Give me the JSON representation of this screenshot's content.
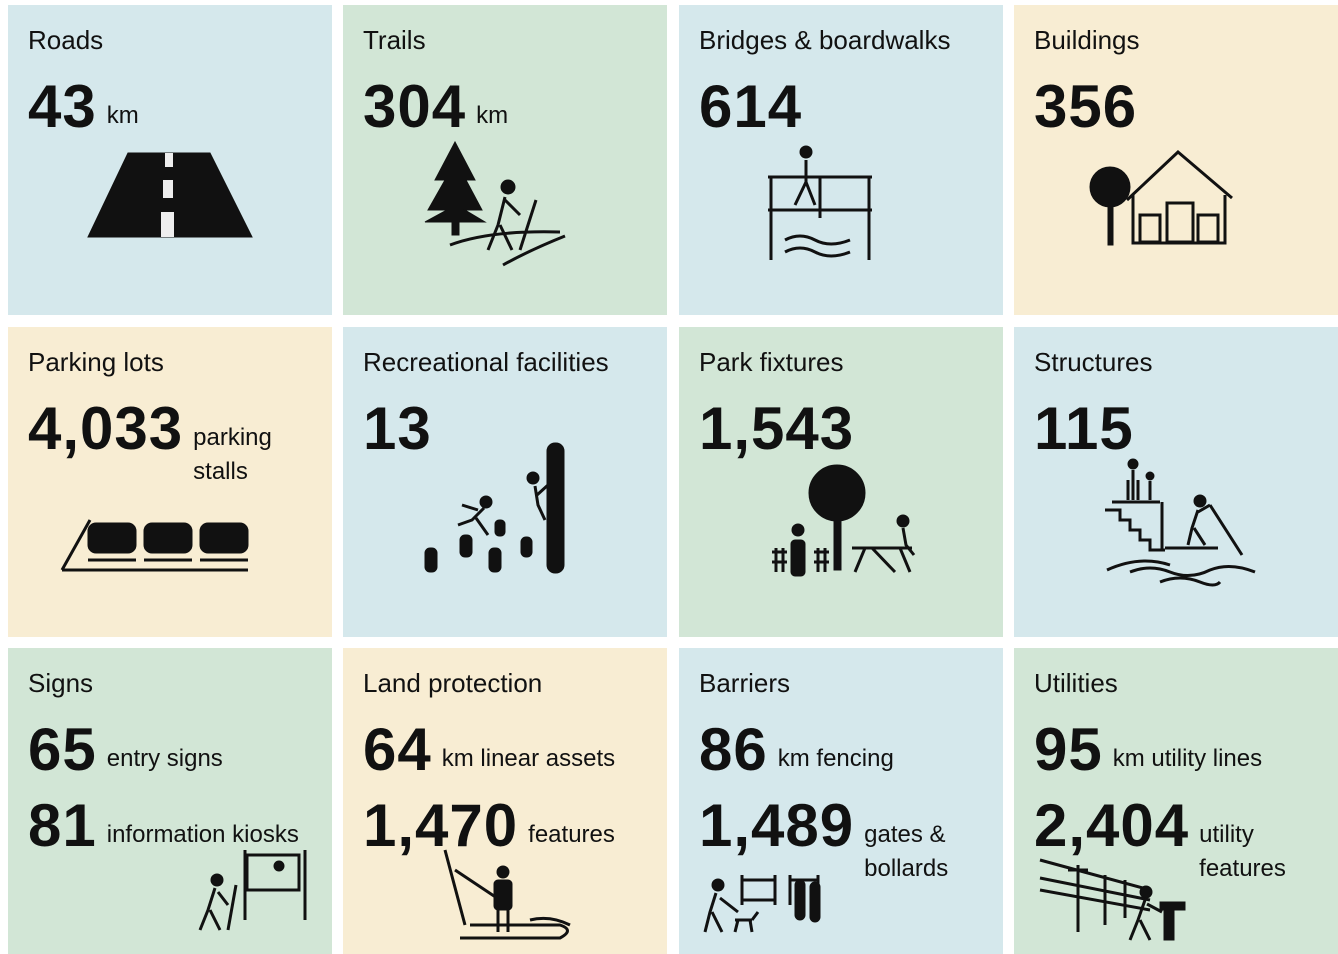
{
  "tiles": [
    {
      "label": "Roads",
      "color": "#d5e8ec",
      "stats": [
        {
          "number": "43",
          "unit": "km"
        }
      ]
    },
    {
      "label": "Trails",
      "color": "#d2e6d6",
      "stats": [
        {
          "number": "304",
          "unit": "km"
        }
      ]
    },
    {
      "label": "Bridges & boardwalks",
      "color": "#d5e8ec",
      "stats": [
        {
          "number": "614"
        }
      ]
    },
    {
      "label": "Buildings",
      "color": "#f8edd3",
      "stats": [
        {
          "number": "356"
        }
      ]
    },
    {
      "label": "Parking lots",
      "color": "#f8edd3",
      "stats": [
        {
          "number": "4,033",
          "unit": "parking stalls"
        }
      ]
    },
    {
      "label": "Recreational facilities",
      "color": "#d5e8ec",
      "stats": [
        {
          "number": "13"
        }
      ]
    },
    {
      "label": "Park fixtures",
      "color": "#d2e6d6",
      "stats": [
        {
          "number": "1,543"
        }
      ]
    },
    {
      "label": "Structures",
      "color": "#d5e8ec",
      "stats": [
        {
          "number": "115"
        }
      ]
    },
    {
      "label": "Signs",
      "color": "#d2e6d6",
      "stats": [
        {
          "number": "65",
          "unit": "entry signs"
        },
        {
          "number": "81",
          "unit": "information kiosks"
        }
      ]
    },
    {
      "label": "Land protection",
      "color": "#f8edd3",
      "stats": [
        {
          "number": "64",
          "unit": "km linear assets"
        },
        {
          "number": "1,470",
          "unit": "features"
        }
      ]
    },
    {
      "label": "Barriers",
      "color": "#d5e8ec",
      "stats": [
        {
          "number": "86",
          "unit": "km fencing"
        },
        {
          "number": "1,489",
          "unit": "gates & bollards"
        }
      ]
    },
    {
      "label": "Utilities",
      "color": "#d2e6d6",
      "stats": [
        {
          "number": "95",
          "unit": "km utility lines"
        },
        {
          "number": "2,404",
          "unit": "utility features"
        }
      ]
    }
  ]
}
